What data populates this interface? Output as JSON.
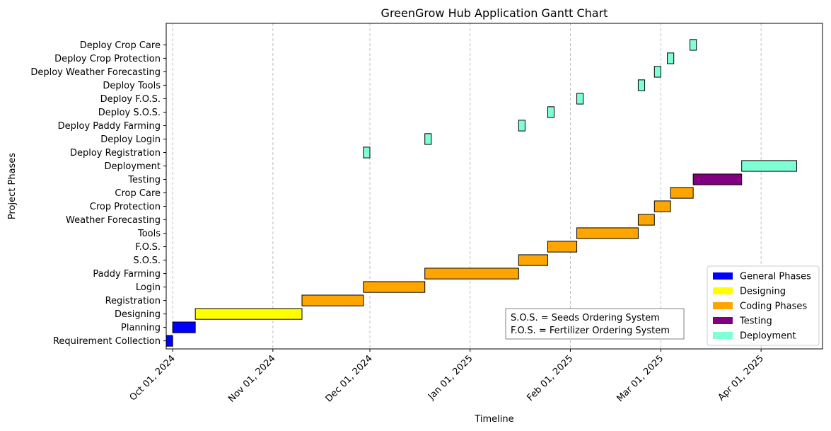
{
  "chart_data": {
    "type": "gantt",
    "title": "GreenGrow Hub Application Gantt Chart",
    "xlabel": "Timeline",
    "ylabel": "Project Phases",
    "xlim": [
      "2024-09-29",
      "2025-04-20"
    ],
    "x_ticks": [
      {
        "date": "2024-10-01",
        "label": "Oct 01, 2024"
      },
      {
        "date": "2024-11-01",
        "label": "Nov 01, 2024"
      },
      {
        "date": "2024-12-01",
        "label": "Dec 01, 2024"
      },
      {
        "date": "2025-01-01",
        "label": "Jan 01, 2025"
      },
      {
        "date": "2025-02-01",
        "label": "Feb 01, 2025"
      },
      {
        "date": "2025-03-01",
        "label": "Mar 01, 2025"
      },
      {
        "date": "2025-04-01",
        "label": "Apr 01, 2025"
      }
    ],
    "grid": "x-dashed",
    "legend_position": "lower right",
    "colors": {
      "General Phases": "#0000ff",
      "Designing": "#ffff00",
      "Coding Phases": "#ffa500",
      "Testing": "#800080",
      "Deployment": "#7fffd4"
    },
    "legend": [
      {
        "label": "General Phases",
        "category": "General Phases"
      },
      {
        "label": "Designing",
        "category": "Designing"
      },
      {
        "label": "Coding Phases",
        "category": "Coding Phases"
      },
      {
        "label": "Testing",
        "category": "Testing"
      },
      {
        "label": "Deployment",
        "category": "Deployment"
      }
    ],
    "tasks": [
      {
        "name": "Requirement Collection",
        "start": "2024-09-29",
        "end": "2024-10-01",
        "category": "General Phases"
      },
      {
        "name": "Planning",
        "start": "2024-10-01",
        "end": "2024-10-08",
        "category": "General Phases"
      },
      {
        "name": "Designing",
        "start": "2024-10-08",
        "end": "2024-11-10",
        "category": "Designing"
      },
      {
        "name": "Registration",
        "start": "2024-11-10",
        "end": "2024-11-29",
        "category": "Coding Phases"
      },
      {
        "name": "Login",
        "start": "2024-11-29",
        "end": "2024-12-18",
        "category": "Coding Phases"
      },
      {
        "name": "Paddy Farming",
        "start": "2024-12-18",
        "end": "2025-01-16",
        "category": "Coding Phases"
      },
      {
        "name": "S.O.S.",
        "start": "2025-01-16",
        "end": "2025-01-25",
        "category": "Coding Phases"
      },
      {
        "name": "F.O.S.",
        "start": "2025-01-25",
        "end": "2025-02-03",
        "category": "Coding Phases"
      },
      {
        "name": "Tools",
        "start": "2025-02-03",
        "end": "2025-02-22",
        "category": "Coding Phases"
      },
      {
        "name": "Weather Forecasting",
        "start": "2025-02-22",
        "end": "2025-02-27",
        "category": "Coding Phases"
      },
      {
        "name": "Crop Protection",
        "start": "2025-02-27",
        "end": "2025-03-04",
        "category": "Coding Phases"
      },
      {
        "name": "Crop Care",
        "start": "2025-03-04",
        "end": "2025-03-11",
        "category": "Coding Phases"
      },
      {
        "name": "Testing",
        "start": "2025-03-11",
        "end": "2025-03-26",
        "category": "Testing"
      },
      {
        "name": "Deployment",
        "start": "2025-03-26",
        "end": "2025-04-12",
        "category": "Deployment"
      },
      {
        "name": "Deploy Registration",
        "start": "2024-11-29",
        "end": "2024-12-01",
        "category": "Deployment"
      },
      {
        "name": "Deploy Login",
        "start": "2024-12-18",
        "end": "2024-12-20",
        "category": "Deployment"
      },
      {
        "name": "Deploy Paddy Farming",
        "start": "2025-01-16",
        "end": "2025-01-18",
        "category": "Deployment"
      },
      {
        "name": "Deploy S.O.S.",
        "start": "2025-01-25",
        "end": "2025-01-27",
        "category": "Deployment"
      },
      {
        "name": "Deploy F.O.S.",
        "start": "2025-02-03",
        "end": "2025-02-05",
        "category": "Deployment"
      },
      {
        "name": "Deploy Tools",
        "start": "2025-02-22",
        "end": "2025-02-24",
        "category": "Deployment"
      },
      {
        "name": "Deploy Weather Forecasting",
        "start": "2025-02-27",
        "end": "2025-03-01",
        "category": "Deployment"
      },
      {
        "name": "Deploy Crop Protection",
        "start": "2025-03-03",
        "end": "2025-03-05",
        "category": "Deployment"
      },
      {
        "name": "Deploy Crop Care",
        "start": "2025-03-10",
        "end": "2025-03-12",
        "category": "Deployment"
      }
    ],
    "annotation": [
      "S.O.S. = Seeds Ordering System",
      "F.O.S. = Fertilizer Ordering System"
    ]
  }
}
